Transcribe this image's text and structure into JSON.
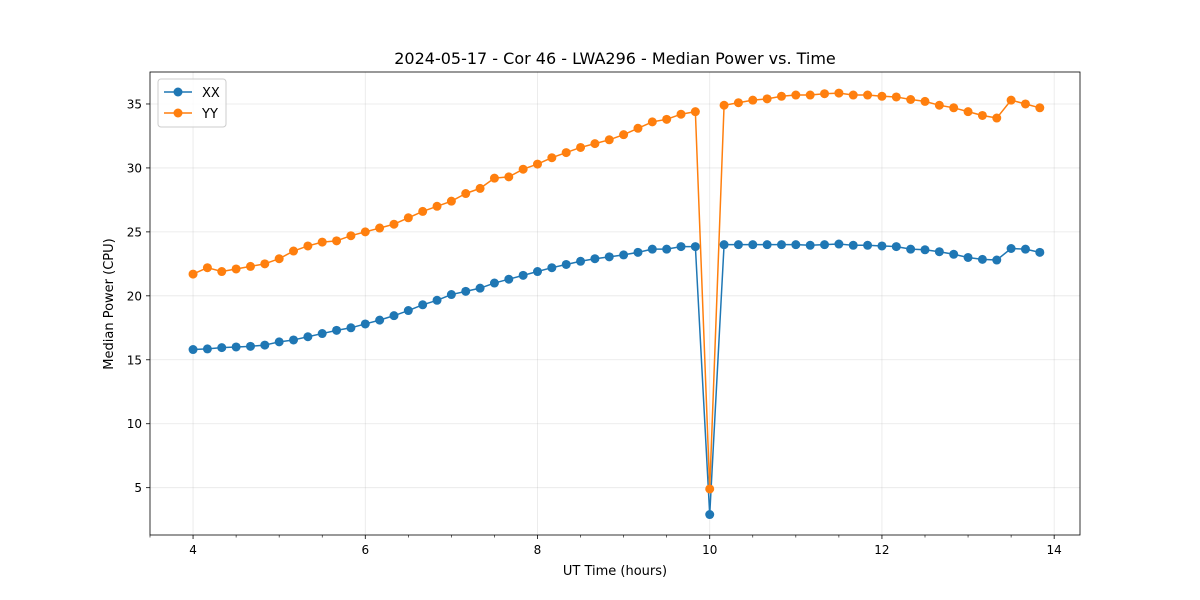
{
  "chart_data": {
    "type": "line",
    "title": "2024-05-17 - Cor 46 - LWA296 - Median Power vs. Time",
    "xlabel": "UT Time (hours)",
    "ylabel": "Median Power (CPU)",
    "xlim": [
      3.5,
      14.3
    ],
    "ylim": [
      1.3,
      37.5
    ],
    "xticks": [
      4,
      6,
      8,
      10,
      12,
      14
    ],
    "xminor_step": 0.5,
    "yticks": [
      5,
      10,
      15,
      20,
      25,
      30,
      35
    ],
    "grid": true,
    "legend_position": "upper-left",
    "x": [
      4.0,
      4.1667,
      4.3333,
      4.5,
      4.6667,
      4.8333,
      5.0,
      5.1667,
      5.3333,
      5.5,
      5.6667,
      5.8333,
      6.0,
      6.1667,
      6.3333,
      6.5,
      6.6667,
      6.8333,
      7.0,
      7.1667,
      7.3333,
      7.5,
      7.6667,
      7.8333,
      8.0,
      8.1667,
      8.3333,
      8.5,
      8.6667,
      8.8333,
      9.0,
      9.1667,
      9.3333,
      9.5,
      9.6667,
      9.8333,
      10.0,
      10.1667,
      10.3333,
      10.5,
      10.6667,
      10.8333,
      11.0,
      11.1667,
      11.3333,
      11.5,
      11.6667,
      11.8333,
      12.0,
      12.1667,
      12.3333,
      12.5,
      12.6667,
      12.8333,
      13.0,
      13.1667,
      13.3333,
      13.5,
      13.6667,
      13.8333
    ],
    "series": [
      {
        "name": "XX",
        "color": "#1f77b4",
        "marker": "circle",
        "values": [
          15.8,
          15.85,
          15.95,
          16.0,
          16.05,
          16.15,
          16.4,
          16.55,
          16.8,
          17.05,
          17.3,
          17.5,
          17.8,
          18.1,
          18.45,
          18.85,
          19.3,
          19.65,
          20.1,
          20.35,
          20.6,
          21.0,
          21.3,
          21.6,
          21.9,
          22.2,
          22.45,
          22.7,
          22.9,
          23.05,
          23.2,
          23.4,
          23.65,
          23.65,
          23.85,
          23.85,
          2.9,
          24.0,
          24.0,
          24.0,
          24.0,
          24.0,
          24.0,
          23.95,
          24.0,
          24.05,
          23.95,
          23.95,
          23.9,
          23.85,
          23.65,
          23.6,
          23.45,
          23.25,
          23.0,
          22.85,
          22.8,
          23.7,
          23.65,
          23.4
        ]
      },
      {
        "name": "YY",
        "color": "#ff7f0e",
        "marker": "circle",
        "values": [
          21.7,
          22.2,
          21.9,
          22.1,
          22.3,
          22.5,
          22.9,
          23.5,
          23.9,
          24.2,
          24.3,
          24.7,
          25.0,
          25.3,
          25.6,
          26.1,
          26.6,
          27.0,
          27.4,
          28.0,
          28.4,
          29.2,
          29.3,
          29.9,
          30.3,
          30.8,
          31.2,
          31.6,
          31.9,
          32.2,
          32.6,
          33.1,
          33.6,
          33.8,
          34.2,
          34.4,
          4.9,
          34.9,
          35.1,
          35.3,
          35.4,
          35.6,
          35.7,
          35.7,
          35.8,
          35.85,
          35.7,
          35.7,
          35.6,
          35.55,
          35.35,
          35.2,
          34.9,
          34.7,
          34.4,
          34.1,
          33.9,
          35.3,
          35.0,
          34.7
        ]
      }
    ]
  }
}
